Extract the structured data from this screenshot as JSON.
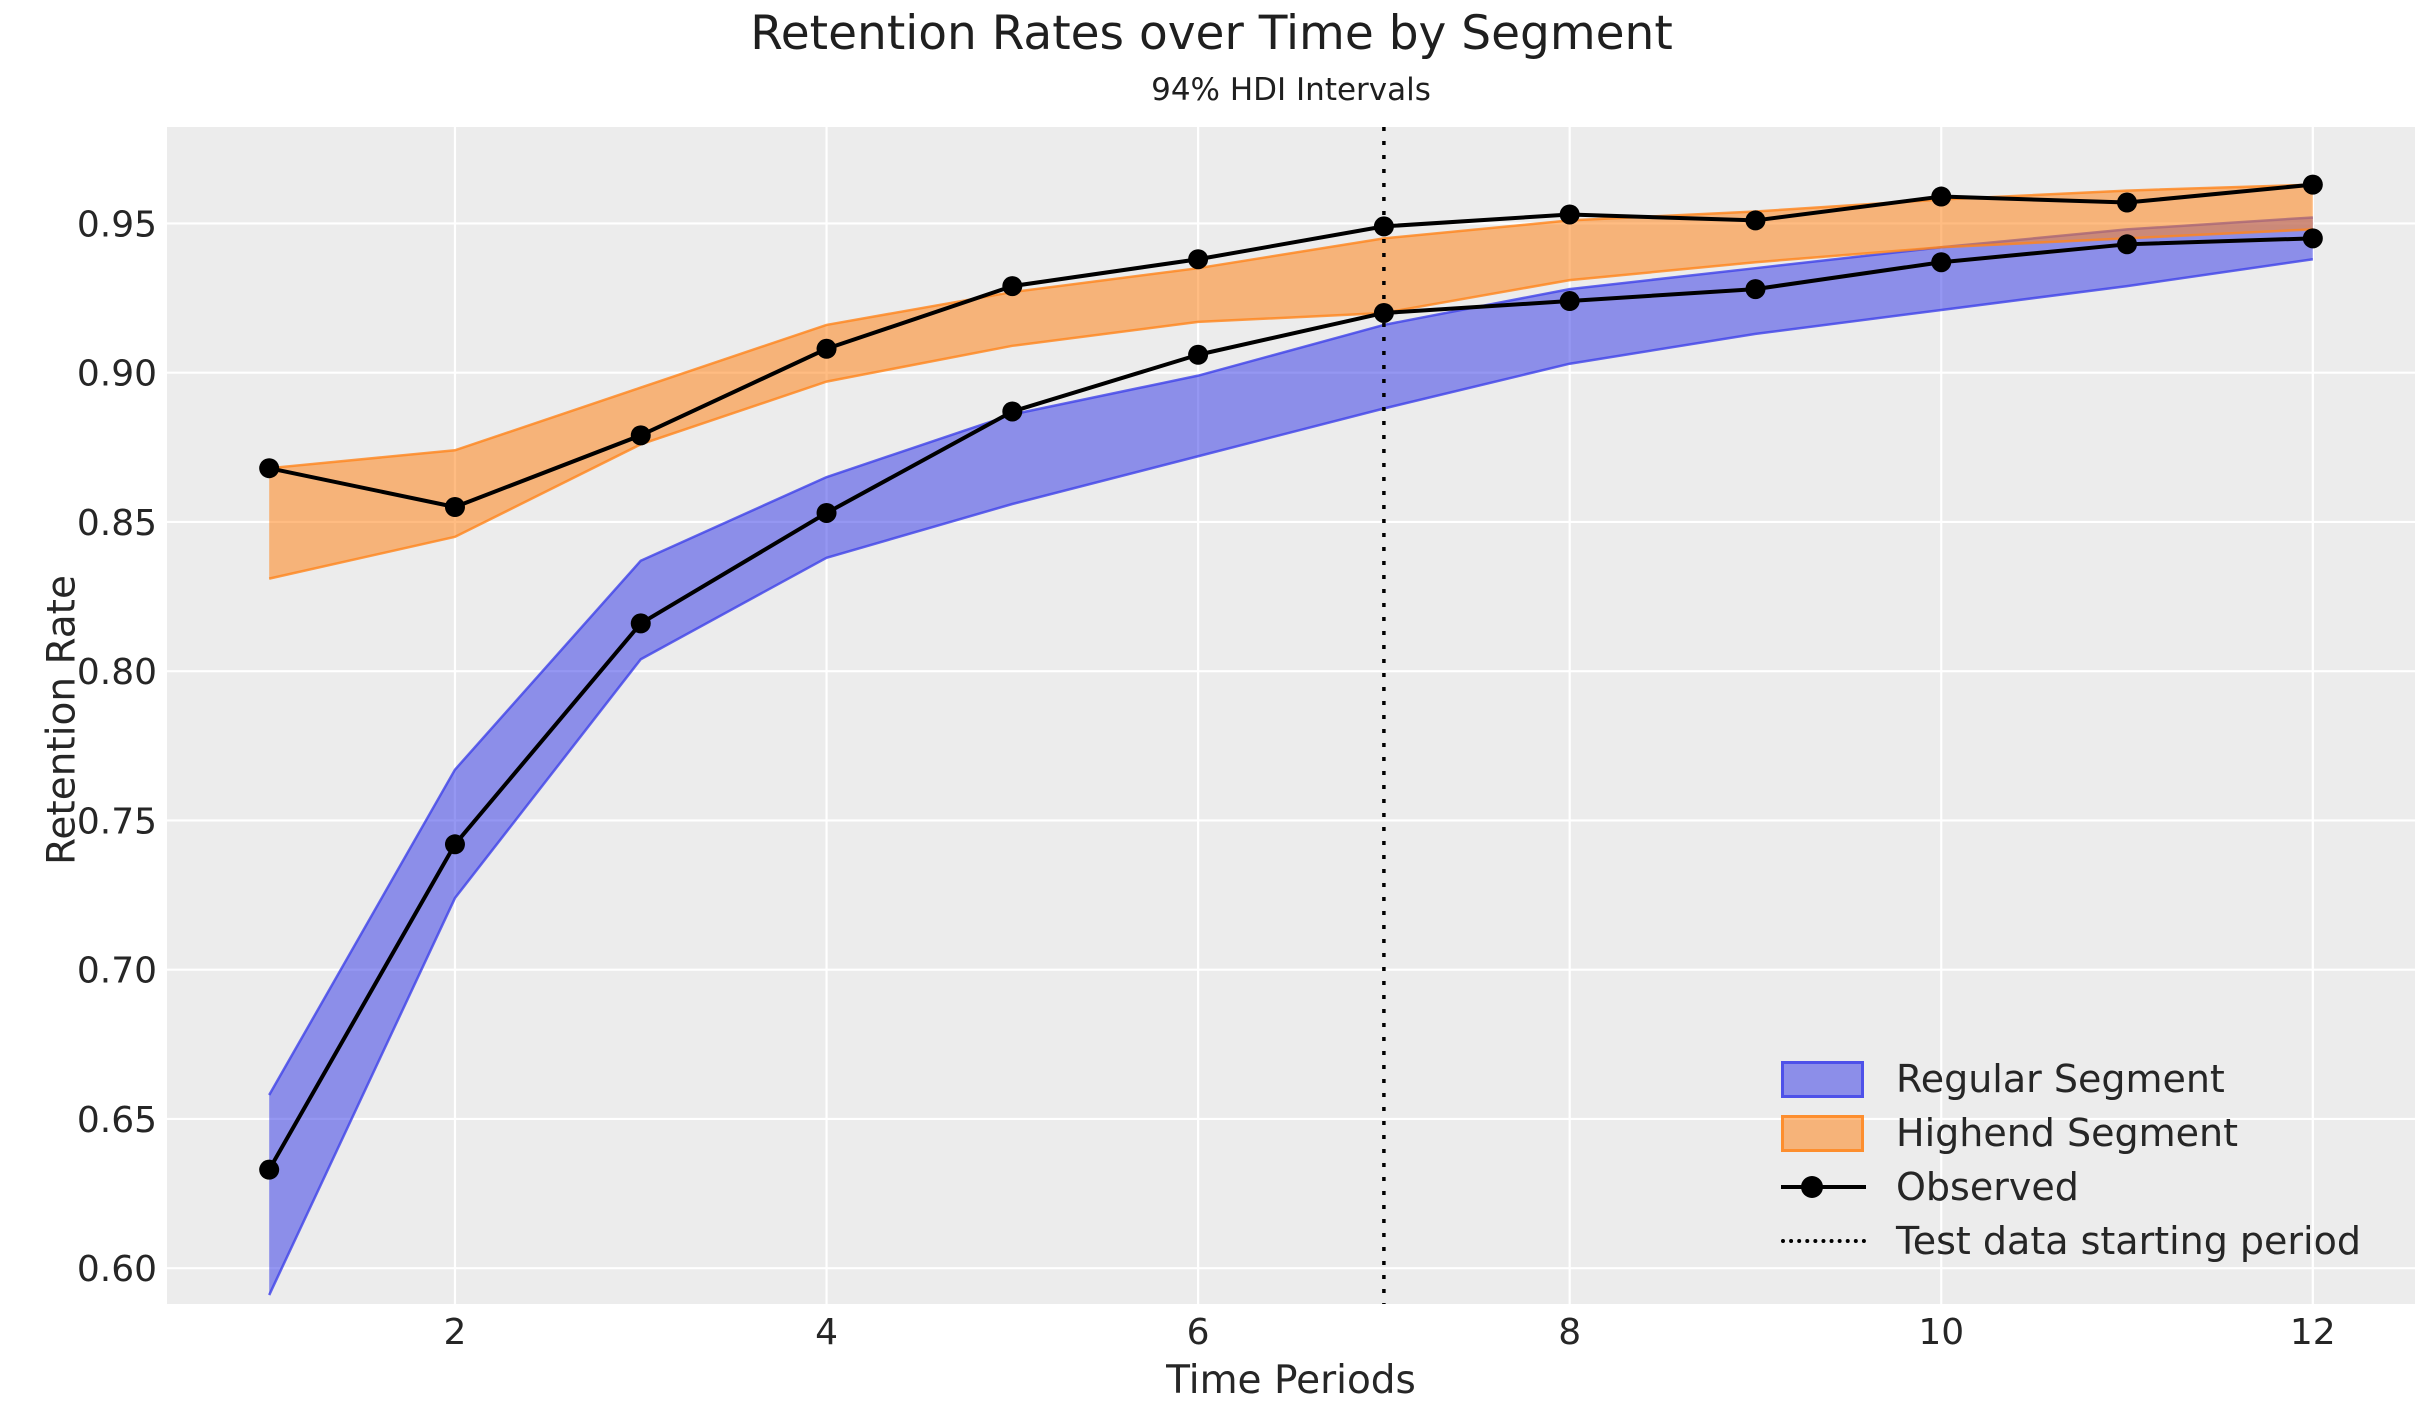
{
  "figure": {
    "title": "Retention Rates over Time by Segment",
    "subtitle": "94% HDI Intervals",
    "x_axis_label": "Time Periods",
    "y_axis_label": "Retention Rate"
  },
  "legend": {
    "items": [
      {
        "label": "Regular Segment",
        "type": "patch"
      },
      {
        "label": "Highend Segment",
        "type": "patch"
      },
      {
        "label": "Observed",
        "type": "line-marker"
      },
      {
        "label": "Test data starting period",
        "type": "dotted-line"
      }
    ]
  },
  "chart_data": {
    "type": "line",
    "title": "Retention Rates over Time by Segment",
    "subtitle": "94% HDI Intervals",
    "xlabel": "Time Periods",
    "ylabel": "Retention Rate",
    "grid": true,
    "legend_position": "lower right",
    "x": [
      1,
      2,
      3,
      4,
      5,
      6,
      7,
      8,
      9,
      10,
      11,
      12
    ],
    "x_ticks": [
      2,
      4,
      6,
      8,
      10,
      12
    ],
    "y_ticks": [
      "0.60",
      "0.65",
      "0.70",
      "0.75",
      "0.80",
      "0.85",
      "0.90",
      "0.95"
    ],
    "xlim": [
      0.45,
      12.55
    ],
    "ylim": [
      0.588,
      0.9823
    ],
    "bands": [
      {
        "name": "Regular Segment",
        "key": "regular",
        "hdi_lower": [
          0.591,
          0.724,
          0.804,
          0.838,
          0.856,
          0.872,
          0.888,
          0.903,
          0.913,
          0.921,
          0.929,
          0.938
        ],
        "hdi_upper": [
          0.658,
          0.767,
          0.837,
          0.865,
          0.886,
          0.899,
          0.916,
          0.928,
          0.935,
          0.942,
          0.948,
          0.952
        ]
      },
      {
        "name": "Highend Segment",
        "key": "highend",
        "hdi_lower": [
          0.831,
          0.845,
          0.876,
          0.897,
          0.909,
          0.917,
          0.92,
          0.931,
          0.937,
          0.942,
          0.945,
          0.948
        ],
        "hdi_upper": [
          0.868,
          0.874,
          0.895,
          0.916,
          0.927,
          0.935,
          0.945,
          0.951,
          0.954,
          0.958,
          0.961,
          0.963
        ]
      }
    ],
    "observed_series": [
      {
        "name": "Observed (Regular Segment)",
        "key": "regular",
        "values": [
          0.633,
          0.742,
          0.816,
          0.853,
          0.887,
          0.906,
          0.92,
          0.924,
          0.928,
          0.937,
          0.943,
          0.945
        ]
      },
      {
        "name": "Observed (Highend Segment)",
        "key": "highend",
        "values": [
          0.868,
          0.855,
          0.879,
          0.908,
          0.929,
          0.938,
          0.949,
          0.953,
          0.951,
          0.959,
          0.957,
          0.963
        ]
      }
    ],
    "vline": {
      "x": 7,
      "label": "Test data starting period"
    },
    "colors": {
      "axes_background": "#ececec",
      "grid": "#ffffff",
      "regular_fill": "rgba(62,66,232,0.55)",
      "regular_edge": "rgba(62,66,232,0.80)",
      "highend_fill": "rgba(255,133,27,0.55)",
      "highend_edge": "rgba(255,133,27,0.80)",
      "observed": "#000000",
      "vline": "#000000",
      "text": "#262626"
    }
  }
}
